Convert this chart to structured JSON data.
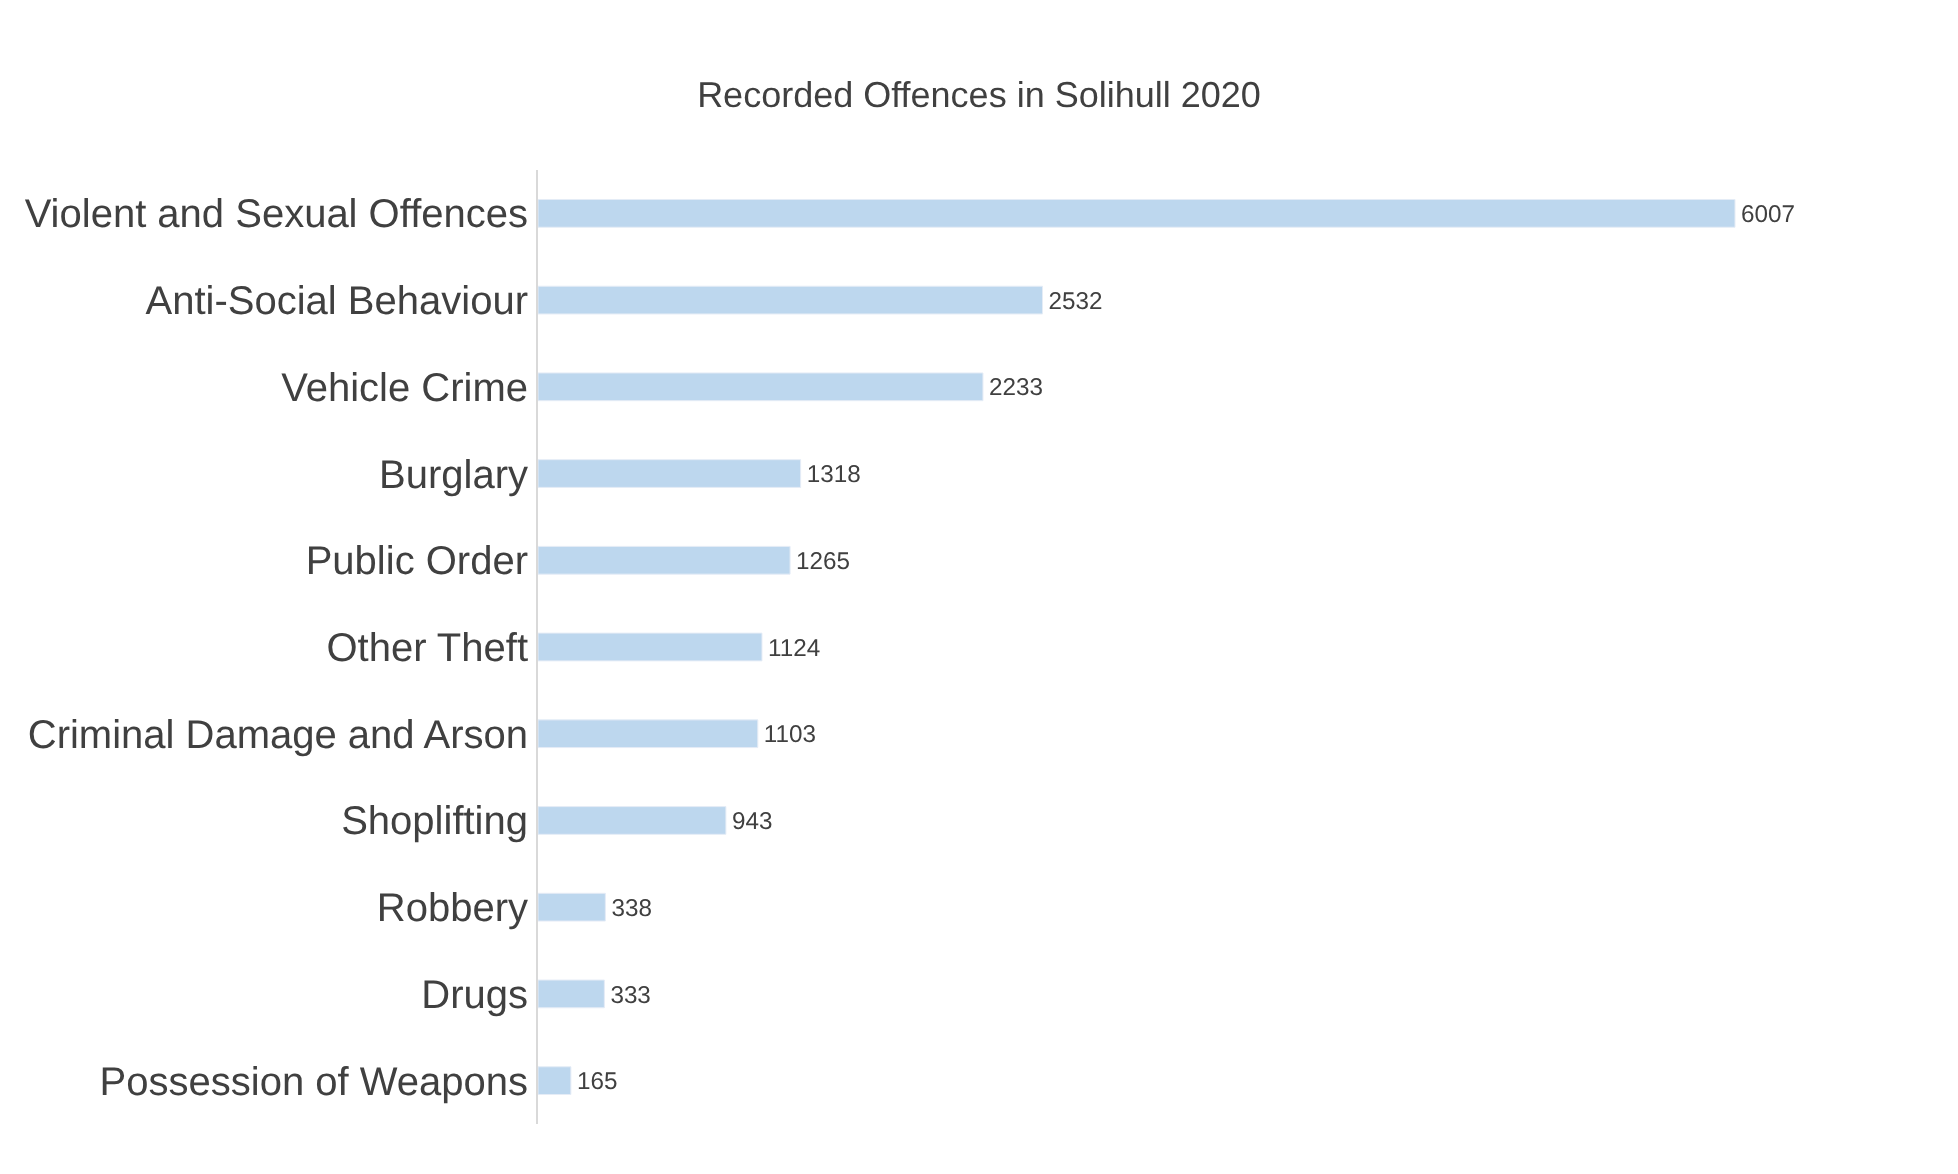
{
  "chart_data": {
    "type": "bar",
    "orientation": "horizontal",
    "title": "Recorded Offences in Solihull 2020",
    "categories": [
      "Violent and Sexual Offences",
      "Anti-Social Behaviour",
      "Vehicle Crime",
      "Burglary",
      "Public Order",
      "Other Theft",
      "Criminal Damage and Arson",
      "Shoplifting",
      "Robbery",
      "Drugs",
      "Possession of Weapons"
    ],
    "values": [
      6007,
      2532,
      2233,
      1318,
      1265,
      1124,
      1103,
      943,
      338,
      333,
      165
    ],
    "color": "#bdd7ee",
    "data_labels": true,
    "tick_labels": "y"
  }
}
